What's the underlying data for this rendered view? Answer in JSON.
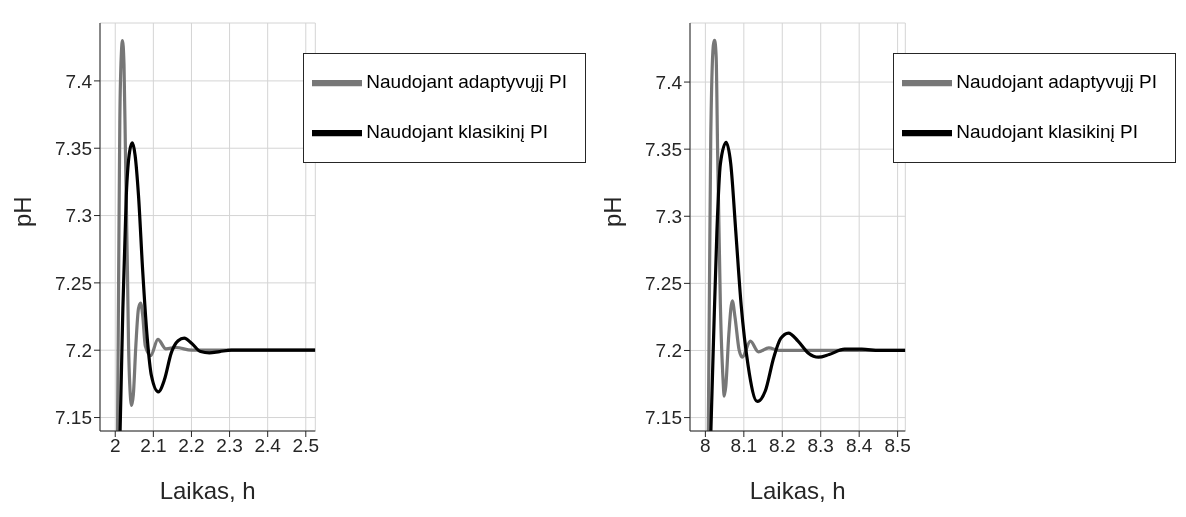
{
  "chart_data": [
    {
      "type": "line",
      "xlabel": "Laikas, h",
      "ylabel": "pH",
      "xlim": [
        1.96,
        2.525
      ],
      "xticks": [
        2,
        2.1,
        2.2,
        2.3,
        2.4,
        2.5
      ],
      "ylim": [
        7.14,
        7.443
      ],
      "yticks": [
        7.15,
        7.2,
        7.25,
        7.3,
        7.35,
        7.4
      ],
      "grid": true,
      "legend": "top right",
      "line_style": "solid",
      "marker": "none",
      "series": [
        {
          "name": "Naudojant adaptyvųjį PI",
          "color": "#777777",
          "x": [
            2.006,
            2.009,
            2.012,
            2.016,
            2.019,
            2.023,
            2.027,
            2.032,
            2.035,
            2.038,
            2.043,
            2.0475,
            2.054,
            2.061,
            2.0665,
            2.072,
            2.079,
            2.093,
            2.112,
            2.133,
            2.16,
            2.2,
            2.525
          ],
          "values": [
            7.14,
            7.259,
            7.37,
            7.42,
            7.43,
            7.412,
            7.343,
            7.259,
            7.203,
            7.175,
            7.159,
            7.167,
            7.203,
            7.231,
            7.235,
            7.226,
            7.203,
            7.196,
            7.208,
            7.201,
            7.202,
            7.2,
            7.2
          ]
        },
        {
          "name": "Naudojant klasikinį PI",
          "color": "#000000",
          "x": [
            2.0127,
            2.02,
            2.029,
            2.038,
            2.045,
            2.052,
            2.061,
            2.072,
            2.084,
            2.095,
            2.113,
            2.129,
            2.147,
            2.165,
            2.181,
            2.201,
            2.224,
            2.247,
            2.274,
            2.305,
            2.369,
            2.525
          ],
          "values": [
            7.14,
            7.231,
            7.315,
            7.348,
            7.354,
            7.345,
            7.315,
            7.259,
            7.209,
            7.181,
            7.169,
            7.178,
            7.198,
            7.207,
            7.209,
            7.205,
            7.199,
            7.198,
            7.199,
            7.2,
            7.2,
            7.2
          ]
        }
      ]
    },
    {
      "type": "line",
      "xlabel": "Laikas, h",
      "ylabel": "pH",
      "xlim": [
        7.96,
        8.52
      ],
      "xticks": [
        8,
        8.1,
        8.2,
        8.3,
        8.4,
        8.5
      ],
      "ylim": [
        7.14,
        7.444
      ],
      "yticks": [
        7.15,
        7.2,
        7.25,
        7.3,
        7.35,
        7.4
      ],
      "grid": true,
      "legend": "top right",
      "line_style": "solid",
      "marker": "none",
      "series": [
        {
          "name": "Naudojant adaptyvųjį PI",
          "color": "#777777",
          "x": [
            8.0076,
            8.011,
            8.014,
            8.021,
            8.024,
            8.028,
            8.032,
            8.039,
            8.046,
            8.049,
            8.053,
            8.061,
            8.07,
            8.077,
            8.088,
            8.096,
            8.117,
            8.138,
            8.165,
            8.191,
            8.52
          ],
          "values": [
            7.14,
            7.261,
            7.359,
            7.428,
            7.431,
            7.419,
            7.345,
            7.234,
            7.178,
            7.166,
            7.173,
            7.212,
            7.237,
            7.225,
            7.2,
            7.195,
            7.207,
            7.199,
            7.202,
            7.2,
            7.2
          ]
        },
        {
          "name": "Naudojant klasikinį PI",
          "color": "#000000",
          "x": [
            8.0143,
            8.021,
            8.03,
            8.039,
            8.054,
            8.066,
            8.079,
            8.093,
            8.111,
            8.135,
            8.156,
            8.178,
            8.196,
            8.216,
            8.241,
            8.268,
            8.294,
            8.322,
            8.362,
            8.407,
            8.452,
            8.52
          ],
          "values": [
            7.14,
            7.206,
            7.289,
            7.339,
            7.355,
            7.339,
            7.289,
            7.234,
            7.189,
            7.162,
            7.17,
            7.195,
            7.209,
            7.213,
            7.207,
            7.198,
            7.195,
            7.197,
            7.201,
            7.201,
            7.2,
            7.2
          ]
        }
      ]
    }
  ]
}
